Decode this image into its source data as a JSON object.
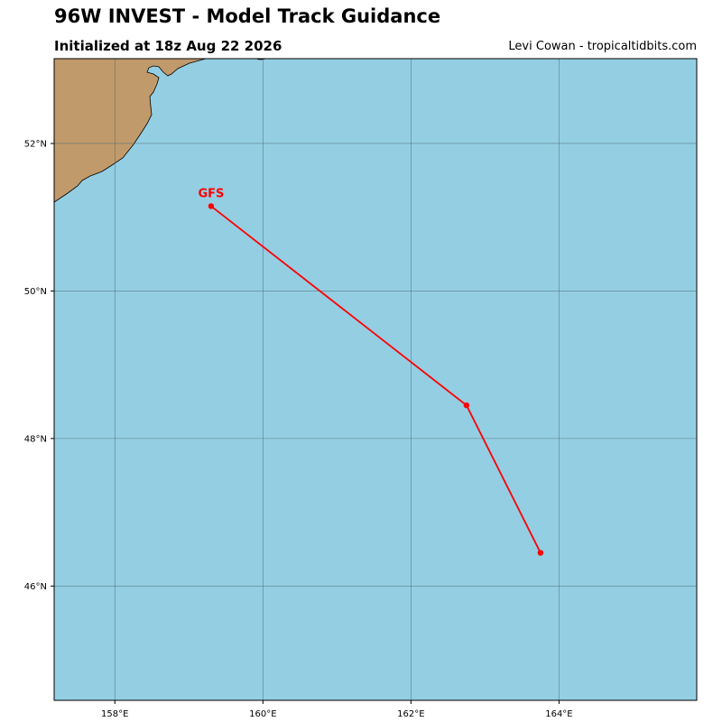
{
  "header": {
    "title": "96W INVEST - Model Track Guidance",
    "subtitle": "Initialized at 18z Aug 22 2026",
    "credit": "Levi Cowan - tropicaltidbits.com"
  },
  "map": {
    "ocean_color": "#94cee3",
    "land_color": "#c19a6b",
    "grid_color": "#4a6a70",
    "lon_range": [
      157.18,
      165.86
    ],
    "lat_range": [
      44.45,
      53.15
    ],
    "lon_ticks": [
      158,
      160,
      162,
      164
    ],
    "lat_ticks": [
      46,
      48,
      50,
      52
    ],
    "lon_tick_labels": [
      "158°E",
      "160°E",
      "162°E",
      "164°E"
    ],
    "lat_tick_labels": [
      "46°N",
      "48°N",
      "50°N",
      "52°N"
    ]
  },
  "tracks": [
    {
      "model": "GFS",
      "color": "#ff0000",
      "points": [
        {
          "lon": 159.3,
          "lat": 51.15
        },
        {
          "lon": 162.75,
          "lat": 48.45
        },
        {
          "lon": 163.75,
          "lat": 46.45
        }
      ]
    }
  ]
}
